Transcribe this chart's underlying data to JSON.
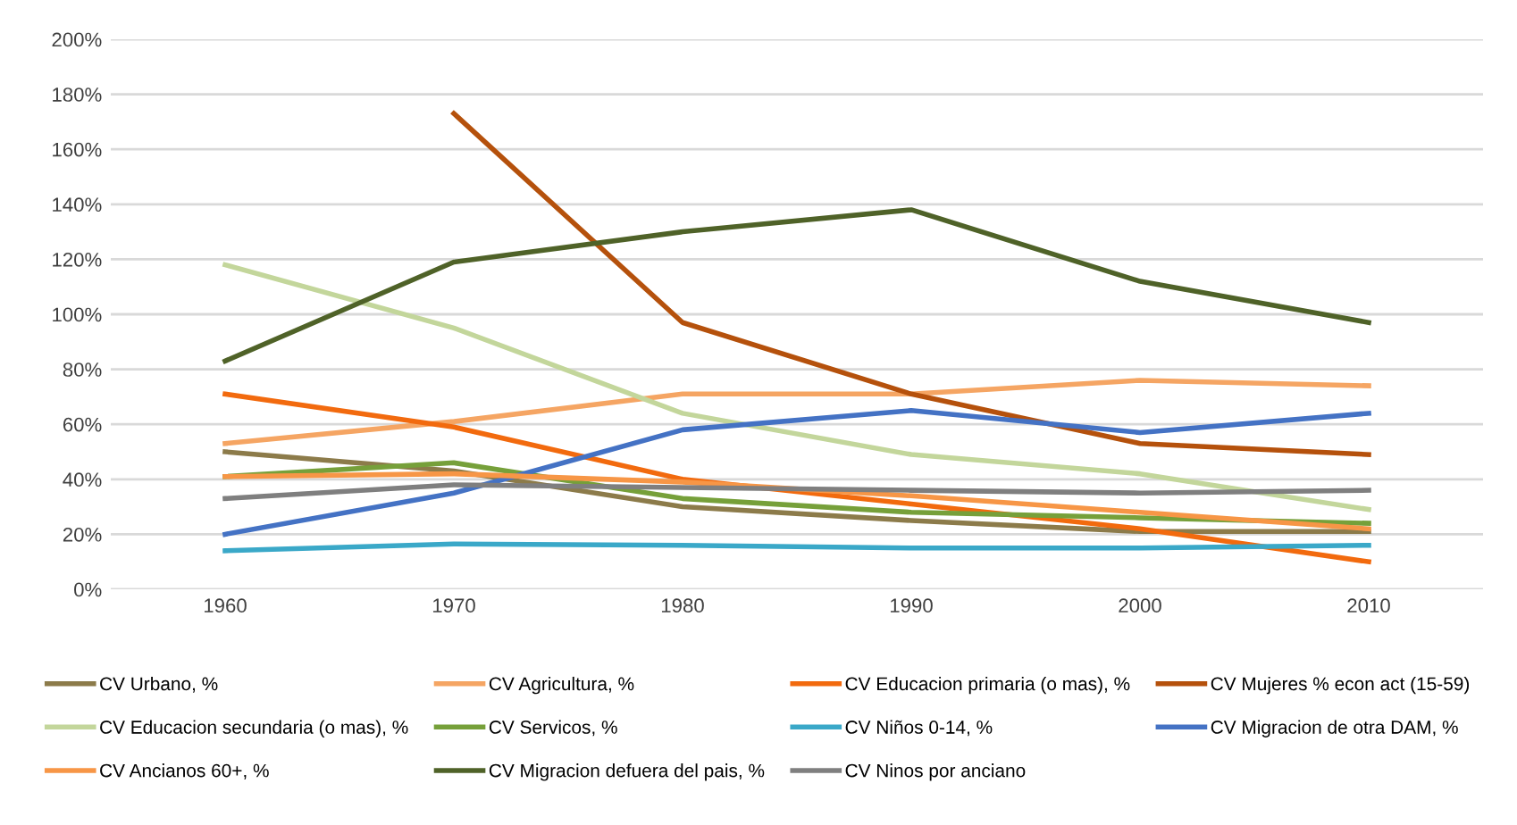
{
  "chart_data": {
    "type": "line",
    "categories": [
      "1960",
      "1970",
      "1980",
      "1990",
      "2000",
      "2010"
    ],
    "series": [
      {
        "name": "CV Urbano, %",
        "color": "#8c7b4a",
        "values": [
          50,
          43,
          30,
          25,
          21,
          21
        ]
      },
      {
        "name": "CV Agricultura, %",
        "color": "#f5a563",
        "values": [
          53,
          61,
          71,
          71,
          76,
          74
        ]
      },
      {
        "name": "CV Educacion primaria (o mas), %",
        "color": "#f26a0e",
        "values": [
          71,
          59,
          40,
          31,
          22,
          10
        ]
      },
      {
        "name": "CV Mujeres % econ act (15-59)",
        "color": "#b5510c",
        "values": [
          null,
          173,
          97,
          71,
          53,
          49
        ]
      },
      {
        "name": "CV Educacion secundaria (o mas), %",
        "color": "#c3d69b",
        "values": [
          118,
          95,
          64,
          49,
          42,
          29
        ]
      },
      {
        "name": "CV Servicos, %",
        "color": "#76a03a",
        "values": [
          41,
          46,
          33,
          28,
          26,
          24
        ]
      },
      {
        "name": "CV Niños 0-14, %",
        "color": "#3aa8c8",
        "values": [
          14,
          16.5,
          16,
          15,
          15,
          16
        ]
      },
      {
        "name": "CV Migracion de otra DAM, %",
        "color": "#4472c4",
        "values": [
          20,
          35,
          58,
          65,
          57,
          64
        ]
      },
      {
        "name": "CV Ancianos 60+, %",
        "color": "#f79646",
        "values": [
          41,
          42,
          39,
          34,
          28,
          22
        ]
      },
      {
        "name": "CV Migracion defuera del pais, %",
        "color": "#4f6228",
        "values": [
          83,
          119,
          130,
          138,
          112,
          97
        ]
      },
      {
        "name": "CV Ninos por anciano",
        "color": "#7f7f7f",
        "values": [
          33,
          38,
          37,
          36,
          35,
          36
        ]
      }
    ],
    "ylim": [
      0,
      200
    ],
    "yticks": [
      {
        "value": 0,
        "label": "0%"
      },
      {
        "value": 20,
        "label": "20%"
      },
      {
        "value": 40,
        "label": "40%"
      },
      {
        "value": 60,
        "label": "60%"
      },
      {
        "value": 80,
        "label": "80%"
      },
      {
        "value": 100,
        "label": "100%"
      },
      {
        "value": 120,
        "label": "120%"
      },
      {
        "value": 140,
        "label": "140%"
      },
      {
        "value": 160,
        "label": "160%"
      },
      {
        "value": 180,
        "label": "180%"
      },
      {
        "value": 200,
        "label": "200%"
      }
    ],
    "grid": "y",
    "legend": "bottom",
    "marker": "none",
    "line_style": "solid"
  }
}
